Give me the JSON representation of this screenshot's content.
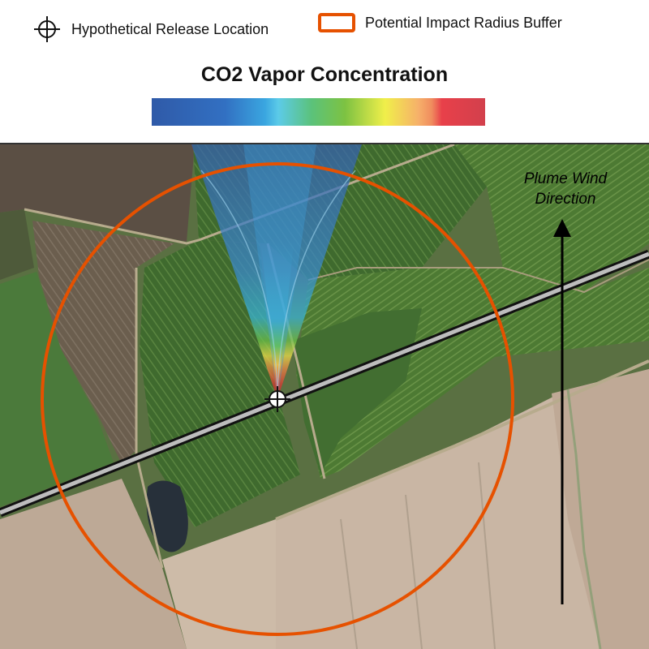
{
  "legend": {
    "release_label": "Hypothetical Release Location",
    "buffer_label": "Potential Impact Radius Buffer",
    "ramp_title": "CO2 Vapor Concentration",
    "buffer_color": "#e65100",
    "release_icon": "crosshair-icon"
  },
  "map": {
    "wind_label_line1": "Plume Wind",
    "wind_label_line2": "Direction",
    "wind_arrow_icon": "north-arrow-icon",
    "pipeline_color": "#bdbdbd"
  }
}
